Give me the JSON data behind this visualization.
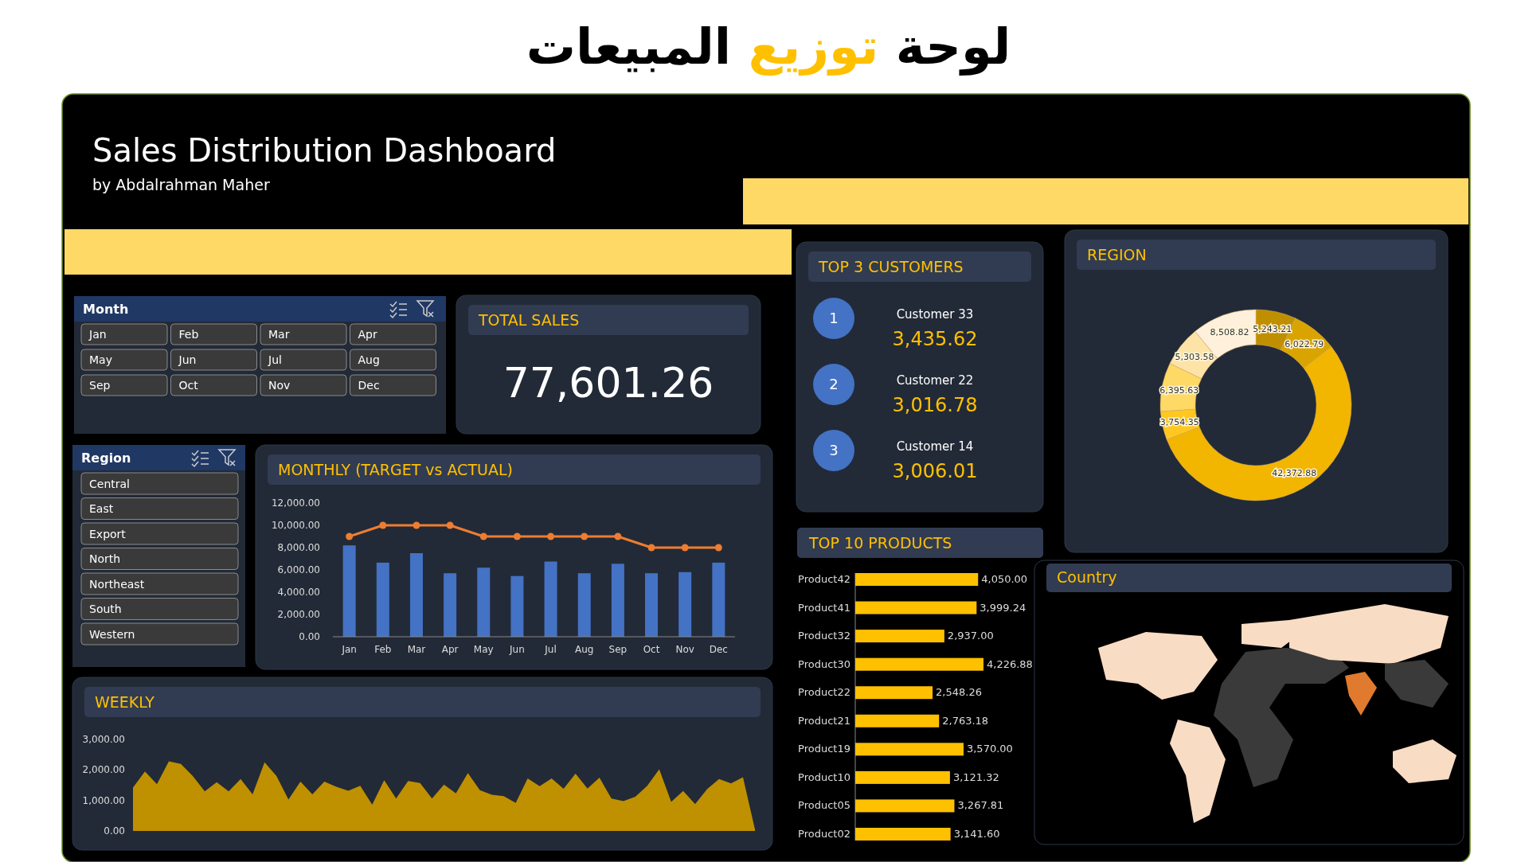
{
  "chart_data": [
    {
      "type": "other",
      "title": "لوحة توزيع المبيعات",
      "subtitle": "Sales Distribution Dashboard",
      "annotations": [
        "by Abdalrahman Maher"
      ]
    },
    {
      "type": "other",
      "title": "Month",
      "annotations": [
        "Jan",
        "Feb",
        "Mar",
        "Apr",
        "May",
        "Jun",
        "Jul",
        "Aug",
        "Sep",
        "Oct",
        "Nov",
        "Dec"
      ]
    },
    {
      "type": "other",
      "title": "TOTAL SALES",
      "annotations": [
        "77,601.26"
      ]
    },
    {
      "type": "other",
      "title": "TOP 3 CUSTOMERS",
      "annotations": [
        "1",
        "Customer 33",
        "3,435.62",
        "2",
        "Customer 22",
        "3,016.78",
        "3",
        "Customer 14",
        "3,006.01"
      ]
    },
    {
      "type": "donut",
      "title": "REGION",
      "categories": [
        null,
        null,
        null,
        null,
        null,
        null,
        null
      ],
      "values": [
        5243.21,
        6022.79,
        42372.88,
        3754.35,
        6395.63,
        5303.58,
        8508.82
      ],
      "colors": [
        "#bf8f00",
        "#d9a400",
        "#f2b500",
        "#ffc71f",
        "#ffd966",
        "#fde3a7",
        "#fff0dc"
      ],
      "value_labels": [
        "5,243.21",
        "6,022.79",
        "42,372.88",
        "3,754.35",
        "6,395.63",
        "5,303.58",
        "8,508.82"
      ]
    },
    {
      "type": "other",
      "title": "Region",
      "annotations": [
        "Central",
        "East",
        "Export",
        "North",
        "Northeast",
        "South",
        "Western"
      ]
    },
    {
      "type": "bar",
      "title": "MONTHLY (TARGET vs ACTUAL)",
      "categories": [
        "Jan",
        "Feb",
        "Mar",
        "Apr",
        "May",
        "Jun",
        "Jul",
        "Aug",
        "Sep",
        "Oct",
        "Nov",
        "Dec"
      ],
      "series": [
        {
          "type": "bar",
          "color": "#4472c4",
          "values": [
            8200,
            6650,
            7500,
            5700,
            6200,
            5450,
            6750,
            5700,
            6550,
            5700,
            5800,
            6650
          ]
        },
        {
          "type": "line",
          "color": "#ed7d31",
          "values": [
            9000,
            10000,
            10000,
            10000,
            9000,
            9000,
            9000,
            9000,
            9000,
            8000,
            8000,
            8000
          ]
        }
      ],
      "marker": "circle",
      "ylim": [
        0,
        12000
      ],
      "yticks": [
        {
          "value": 0,
          "label": "0.00"
        },
        {
          "value": 2000,
          "label": "2,000.00"
        },
        {
          "value": 4000,
          "label": "4,000.00"
        },
        {
          "value": 6000,
          "label": "6,000.00"
        },
        {
          "value": 8000,
          "label": "8,000.00"
        },
        {
          "value": 10000,
          "label": "10,000.00"
        },
        {
          "value": 12000,
          "label": "12,000.00"
        }
      ]
    },
    {
      "type": "bar",
      "title": "TOP 10 PRODUCTS",
      "orientation": "horizontal",
      "categories": [
        "Product42",
        "Product41",
        "Product32",
        "Product30",
        "Product22",
        "Product21",
        "Product19",
        "Product10",
        "Product05",
        "Product02"
      ],
      "values": [
        4050.0,
        3999.24,
        2937.0,
        4226.88,
        2548.26,
        2763.18,
        3570.0,
        3121.32,
        3267.81,
        3141.6
      ],
      "color": "#ffc000",
      "value_labels": [
        "4,050.00",
        "3,999.24",
        "2,937.00",
        "4,226.88",
        "2,548.26",
        "2,763.18",
        "3,570.00",
        "3,121.32",
        "3,267.81",
        "3,141.60"
      ]
    },
    {
      "type": "area",
      "title": "WEEKLY",
      "categories": [
        null,
        null,
        null,
        null,
        null,
        null,
        null,
        null,
        null,
        null,
        null,
        null,
        null,
        null,
        null,
        null,
        null,
        null,
        null,
        null,
        null,
        null,
        null,
        null,
        null,
        null,
        null,
        null,
        null,
        null,
        null,
        null,
        null,
        null,
        null,
        null,
        null,
        null,
        null,
        null,
        null,
        null,
        null,
        null,
        null,
        null,
        null,
        null,
        null,
        null,
        null,
        null,
        null
      ],
      "values": [
        1420,
        1950,
        1530,
        2280,
        2200,
        1800,
        1300,
        1600,
        1300,
        1700,
        1200,
        2250,
        1800,
        1030,
        1620,
        1200,
        1620,
        1450,
        1320,
        1480,
        860,
        1660,
        1060,
        1640,
        1570,
        1060,
        1520,
        1230,
        1900,
        1340,
        1190,
        1140,
        920,
        1720,
        1470,
        1720,
        1380,
        1880,
        1390,
        1750,
        1060,
        980,
        1120,
        1480,
        2020,
        950,
        1310,
        880,
        1370,
        1700,
        1560,
        1760,
        50
      ],
      "color": "#bf9000",
      "ylim": [
        0,
        3000
      ],
      "yticks": [
        {
          "value": 0,
          "label": "0.00"
        },
        {
          "value": 1000,
          "label": "1,000.00"
        },
        {
          "value": 2000,
          "label": "2,000.00"
        },
        {
          "value": 3000,
          "label": "3,000.00"
        }
      ]
    },
    {
      "type": "other",
      "title": "Country"
    }
  ]
}
